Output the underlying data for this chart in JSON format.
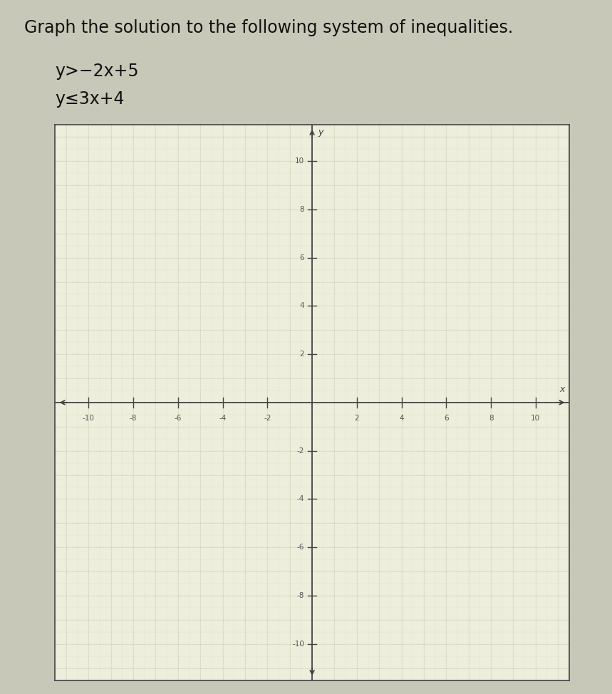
{
  "title": "Graph the solution to the following system of inequalities.",
  "eq1_display": "y>−2x+5",
  "eq2_display": "y≤3x+4",
  "xlim": [
    -11.5,
    11.5
  ],
  "ylim": [
    -11.5,
    11.5
  ],
  "xticks": [
    -10,
    -8,
    -6,
    -4,
    -2,
    2,
    4,
    6,
    8,
    10
  ],
  "yticks": [
    -10,
    -8,
    -6,
    -4,
    -2,
    2,
    4,
    6,
    8,
    10
  ],
  "axis_color": "#444444",
  "background_color": "#eeeedd",
  "outer_background": "#c8c8b8",
  "border_color": "#444444",
  "tick_label_color": "#555555",
  "title_color": "#111111",
  "title_fontsize": 17,
  "eq_fontsize": 17,
  "grid_color_fine": "#c0c0a0",
  "grid_color_coarse": "#b0b090"
}
